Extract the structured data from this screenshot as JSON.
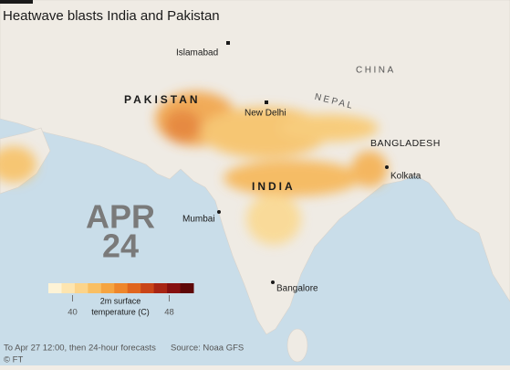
{
  "header": {
    "title": "Heatwave blasts India and Pakistan"
  },
  "map": {
    "date": {
      "month": "APR",
      "day": "24"
    },
    "countries": [
      "PAKISTAN",
      "INDIA",
      "CHINA",
      "NEPAL",
      "BANGLADESH"
    ],
    "cities": [
      "Islamabad",
      "New Delhi",
      "Kolkata",
      "Mumbai",
      "Bangalore"
    ]
  },
  "legend": {
    "label": [
      "2m surface",
      "temperature (C)"
    ],
    "xlim": [
      38,
      50
    ],
    "ticks": [
      40,
      48
    ],
    "colors": [
      "#fdf3d6",
      "#fde5b0",
      "#fcd48a",
      "#f9bf63",
      "#f5a441",
      "#ee862b",
      "#e0651e",
      "#c94418",
      "#a82514",
      "#861010",
      "#5e0808"
    ]
  },
  "footer": {
    "note": "To Apr 27 12:00, then 24-hour forecasts",
    "source": "Source: Noaa GFS",
    "credit": "© FT"
  }
}
